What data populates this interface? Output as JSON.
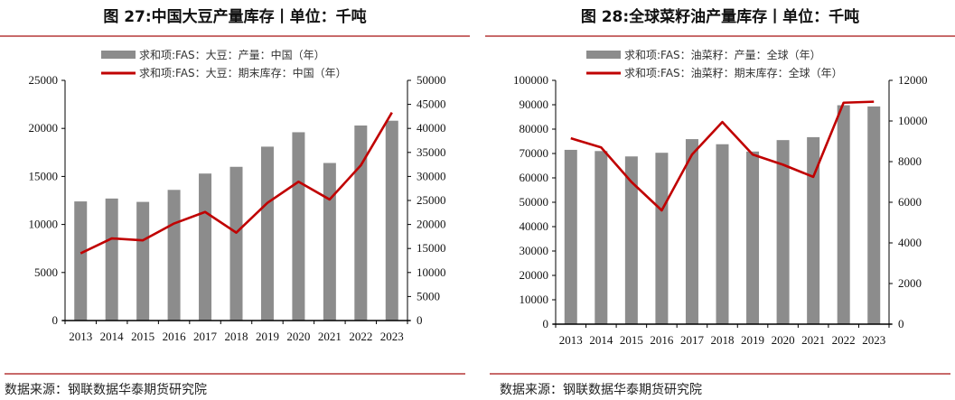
{
  "source_label": "数据来源：",
  "source_text": "钢联数据华泰期货研究院",
  "colors": {
    "bar": "#8c8c8c",
    "line": "#c00000",
    "rule": "#c86a6a"
  },
  "chart_data": [
    {
      "type": "bar+line",
      "title": "图 27:中国大豆产量库存丨单位：千吨",
      "categories": [
        "2013",
        "2014",
        "2015",
        "2016",
        "2017",
        "2018",
        "2019",
        "2020",
        "2021",
        "2022",
        "2023"
      ],
      "series": [
        {
          "name": "求和项:FAS：大豆：产量：中国（年）",
          "type": "bar",
          "axis": "left",
          "values": [
            12400,
            12700,
            12350,
            13600,
            15300,
            16000,
            18100,
            19600,
            16400,
            20300,
            20800
          ]
        },
        {
          "name": "求和项:FAS：大豆：期末库存：中国（年）",
          "type": "line",
          "axis": "right",
          "values": [
            14000,
            17100,
            16700,
            20200,
            22600,
            18300,
            24500,
            28900,
            25200,
            32300,
            43300
          ]
        }
      ],
      "ylim": [
        0,
        25000
      ],
      "yticks": [
        0,
        5000,
        10000,
        15000,
        20000,
        25000
      ],
      "y2lim": [
        0,
        50000
      ],
      "y2ticks": [
        0,
        5000,
        10000,
        15000,
        20000,
        25000,
        30000,
        35000,
        40000,
        45000,
        50000
      ],
      "legend": "top",
      "grid": false
    },
    {
      "type": "bar+line",
      "title": "图 28:全球菜籽油产量库存丨单位：千吨",
      "categories": [
        "2013",
        "2014",
        "2015",
        "2016",
        "2017",
        "2018",
        "2019",
        "2020",
        "2021",
        "2022",
        "2023"
      ],
      "series": [
        {
          "name": "求和项:FAS：油菜籽：产量：全球（年）",
          "type": "bar",
          "axis": "left",
          "values": [
            71500,
            71000,
            68800,
            70300,
            75900,
            73800,
            70800,
            75500,
            76700,
            89800,
            89300
          ]
        },
        {
          "name": "求和项:FAS：油菜籽：期末库存：全球（年）",
          "type": "line",
          "axis": "right",
          "values": [
            9150,
            8700,
            7000,
            5600,
            8350,
            9950,
            8350,
            7850,
            7250,
            10900,
            10950
          ]
        }
      ],
      "ylim": [
        0,
        100000
      ],
      "yticks": [
        0,
        10000,
        20000,
        30000,
        40000,
        50000,
        60000,
        70000,
        80000,
        90000,
        100000
      ],
      "y2lim": [
        0,
        12000
      ],
      "y2ticks": [
        0,
        2000,
        4000,
        6000,
        8000,
        10000,
        12000
      ],
      "legend": "top",
      "grid": false
    }
  ]
}
